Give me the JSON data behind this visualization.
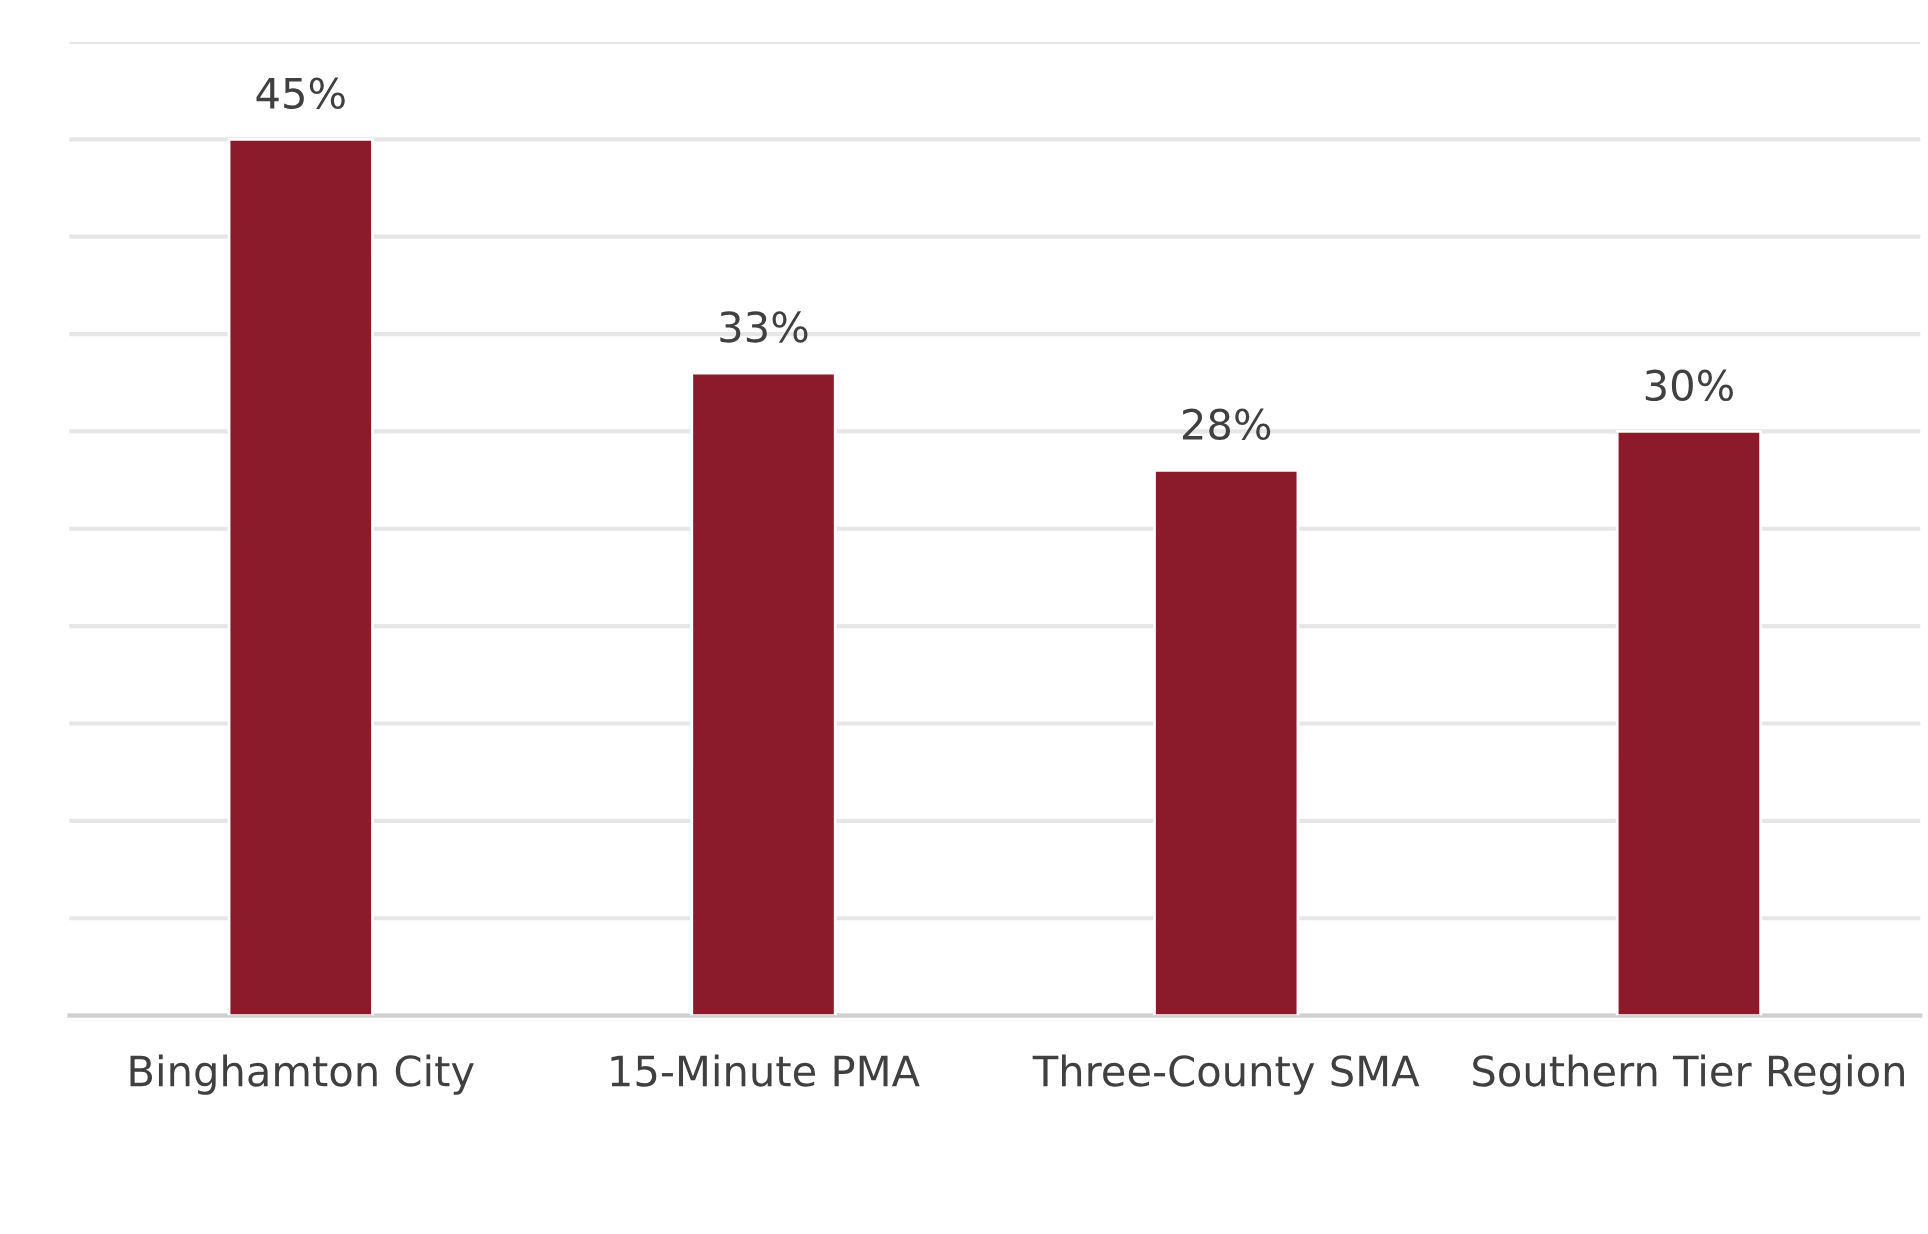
{
  "chart_data": {
    "type": "bar",
    "categories": [
      "Binghamton City",
      "15-Minute PMA",
      "Three-County SMA",
      "Southern Tier Region"
    ],
    "values": [
      45,
      33,
      28,
      30
    ],
    "value_labels": [
      "45%",
      "33%",
      "28%",
      "30%"
    ],
    "color": "#8b1a2b",
    "ylim": [
      0,
      50
    ],
    "yticks": [
      {
        "value": 0,
        "label": null
      },
      {
        "value": 5,
        "label": null
      },
      {
        "value": 10,
        "label": null
      },
      {
        "value": 15,
        "label": null
      },
      {
        "value": 20,
        "label": null
      },
      {
        "value": 25,
        "label": null
      },
      {
        "value": 30,
        "label": null
      },
      {
        "value": 35,
        "label": null
      },
      {
        "value": 40,
        "label": null
      },
      {
        "value": 45,
        "label": null
      },
      {
        "value": 50,
        "label": null
      }
    ],
    "tick_labels": "x",
    "grid": "y",
    "legend": false
  }
}
